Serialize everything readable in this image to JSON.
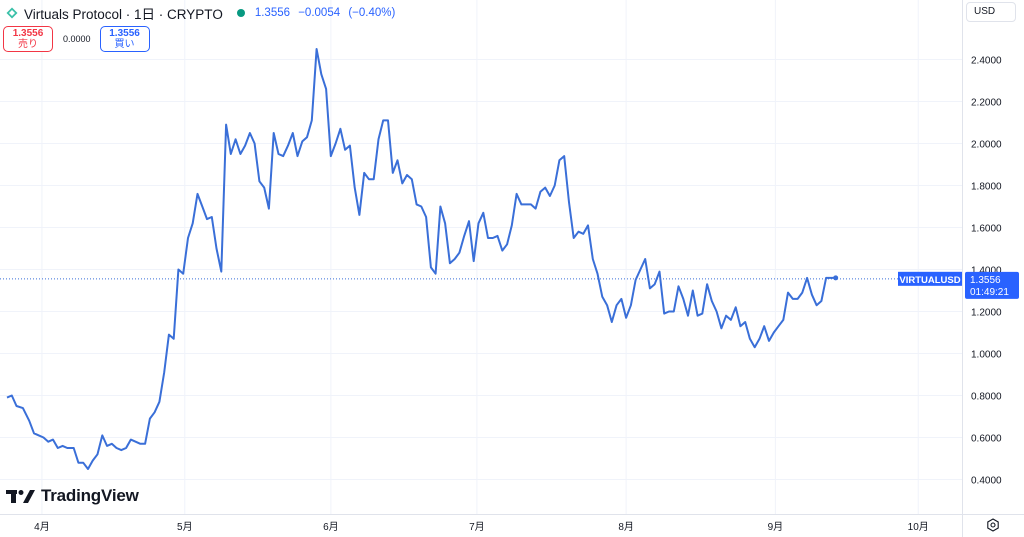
{
  "header": {
    "symbol": "Virtuals Protocol · 1日 · CRYPTO",
    "last": "1.3556",
    "change": "−0.0054",
    "change_pct": "(−0.40%)"
  },
  "trade": {
    "sell_price": "1.3556",
    "sell_label": "売り",
    "spread": "0.0000",
    "buy_price": "1.3556",
    "buy_label": "買い"
  },
  "currency": "USD",
  "watermark": "TradingView",
  "colors": {
    "line": "#3a6fd8",
    "sell": "#f23645",
    "buy": "#2962ff",
    "live": "#089981"
  },
  "icons": [
    "virtuals-logo-icon",
    "live-status-icon",
    "tradingview-logo-icon",
    "settings-icon"
  ],
  "chart_data": {
    "type": "line",
    "series": [
      {
        "name": "VIRTUALUSD",
        "values": [
          [
            0.0,
            0.79
          ],
          [
            1.5,
            0.8
          ],
          [
            3,
            0.75
          ],
          [
            5,
            0.74
          ],
          [
            7,
            0.68
          ],
          [
            8.5,
            0.62
          ],
          [
            10,
            0.61
          ],
          [
            11.5,
            0.6
          ],
          [
            13,
            0.58
          ],
          [
            14.5,
            0.59
          ],
          [
            16,
            0.55
          ],
          [
            17.5,
            0.56
          ],
          [
            19,
            0.55
          ],
          [
            21,
            0.55
          ],
          [
            22.5,
            0.48
          ],
          [
            24,
            0.48
          ],
          [
            25.5,
            0.45
          ],
          [
            27,
            0.49
          ],
          [
            28.5,
            0.52
          ],
          [
            30,
            0.61
          ],
          [
            31.5,
            0.56
          ],
          [
            33,
            0.57
          ],
          [
            34.5,
            0.55
          ],
          [
            36,
            0.54
          ],
          [
            37.5,
            0.55
          ],
          [
            39,
            0.59
          ],
          [
            40.5,
            0.58
          ],
          [
            42,
            0.57
          ],
          [
            43.5,
            0.57
          ],
          [
            45,
            0.69
          ],
          [
            46.5,
            0.72
          ],
          [
            48,
            0.77
          ],
          [
            49.5,
            0.91
          ],
          [
            51,
            1.09
          ],
          [
            52.5,
            1.07
          ],
          [
            54,
            1.4
          ],
          [
            55.5,
            1.38
          ],
          [
            57,
            1.55
          ],
          [
            58.5,
            1.62
          ],
          [
            60,
            1.76
          ],
          [
            61.5,
            1.7
          ],
          [
            63,
            1.64
          ],
          [
            64.5,
            1.65
          ],
          [
            66,
            1.5
          ],
          [
            67.5,
            1.39
          ],
          [
            69,
            2.09
          ],
          [
            70.5,
            1.95
          ],
          [
            72,
            2.02
          ],
          [
            73.5,
            1.95
          ],
          [
            75,
            1.99
          ],
          [
            76.5,
            2.05
          ],
          [
            78,
            2.0
          ],
          [
            79.5,
            1.82
          ],
          [
            81,
            1.79
          ],
          [
            82.5,
            1.69
          ],
          [
            84,
            2.05
          ],
          [
            85.5,
            1.95
          ],
          [
            87,
            1.94
          ],
          [
            88.5,
            1.99
          ],
          [
            90,
            2.05
          ],
          [
            91.5,
            1.94
          ],
          [
            93,
            2.01
          ],
          [
            94.5,
            2.03
          ],
          [
            96,
            2.11
          ],
          [
            97.5,
            2.45
          ],
          [
            99,
            2.33
          ],
          [
            100.5,
            2.26
          ],
          [
            102,
            1.94
          ],
          [
            103.5,
            2.0
          ],
          [
            105,
            2.07
          ],
          [
            106.5,
            1.97
          ],
          [
            108,
            1.99
          ],
          [
            109.5,
            1.79
          ],
          [
            111,
            1.66
          ],
          [
            112.5,
            1.86
          ],
          [
            114,
            1.83
          ],
          [
            115.5,
            1.83
          ],
          [
            117,
            2.02
          ],
          [
            118.5,
            2.11
          ],
          [
            120,
            2.11
          ],
          [
            121.5,
            1.86
          ],
          [
            123,
            1.92
          ],
          [
            124.5,
            1.81
          ],
          [
            126,
            1.85
          ],
          [
            127.5,
            1.83
          ],
          [
            129,
            1.71
          ],
          [
            130.5,
            1.7
          ],
          [
            132,
            1.65
          ],
          [
            133.5,
            1.41
          ],
          [
            135,
            1.38
          ],
          [
            136.5,
            1.7
          ],
          [
            138,
            1.62
          ],
          [
            139.5,
            1.43
          ],
          [
            141,
            1.45
          ],
          [
            142.5,
            1.48
          ],
          [
            144,
            1.56
          ],
          [
            145.5,
            1.63
          ],
          [
            147,
            1.44
          ],
          [
            148.5,
            1.62
          ],
          [
            150,
            1.67
          ],
          [
            151.5,
            1.55
          ],
          [
            153,
            1.55
          ],
          [
            154.5,
            1.56
          ],
          [
            156,
            1.49
          ],
          [
            157.5,
            1.52
          ],
          [
            159,
            1.61
          ],
          [
            160.5,
            1.76
          ],
          [
            162,
            1.71
          ],
          [
            163.5,
            1.71
          ],
          [
            165,
            1.71
          ],
          [
            166.5,
            1.69
          ],
          [
            168,
            1.77
          ],
          [
            169.5,
            1.79
          ],
          [
            171,
            1.75
          ],
          [
            172.5,
            1.8
          ],
          [
            174,
            1.92
          ],
          [
            175.5,
            1.94
          ],
          [
            177,
            1.72
          ],
          [
            178.5,
            1.55
          ],
          [
            180,
            1.58
          ],
          [
            181.5,
            1.57
          ],
          [
            183,
            1.61
          ],
          [
            184.5,
            1.45
          ],
          [
            186,
            1.38
          ],
          [
            187.5,
            1.27
          ],
          [
            189,
            1.23
          ],
          [
            190.5,
            1.15
          ],
          [
            192,
            1.23
          ],
          [
            193.5,
            1.26
          ],
          [
            195,
            1.17
          ],
          [
            196.5,
            1.23
          ],
          [
            198,
            1.35
          ],
          [
            199.5,
            1.4
          ],
          [
            201,
            1.45
          ],
          [
            202.5,
            1.31
          ],
          [
            204,
            1.33
          ],
          [
            205.5,
            1.39
          ],
          [
            207,
            1.19
          ],
          [
            208.5,
            1.2
          ],
          [
            210,
            1.2
          ],
          [
            211.5,
            1.32
          ],
          [
            213,
            1.26
          ],
          [
            214.5,
            1.18
          ],
          [
            216,
            1.3
          ],
          [
            217.5,
            1.18
          ],
          [
            219,
            1.19
          ],
          [
            220.5,
            1.33
          ],
          [
            222,
            1.25
          ],
          [
            223.5,
            1.2
          ],
          [
            225,
            1.12
          ],
          [
            226.5,
            1.18
          ],
          [
            228,
            1.16
          ],
          [
            229.5,
            1.22
          ],
          [
            231,
            1.13
          ],
          [
            232.5,
            1.15
          ],
          [
            234,
            1.07
          ],
          [
            235.5,
            1.03
          ],
          [
            237,
            1.07
          ],
          [
            238.5,
            1.13
          ],
          [
            240,
            1.06
          ],
          [
            241.5,
            1.1
          ],
          [
            243,
            1.13
          ],
          [
            244.5,
            1.16
          ],
          [
            246,
            1.29
          ],
          [
            247.5,
            1.26
          ],
          [
            249,
            1.26
          ],
          [
            250.5,
            1.29
          ],
          [
            252,
            1.36
          ],
          [
            253.5,
            1.28
          ],
          [
            255,
            1.23
          ],
          [
            256.5,
            1.25
          ],
          [
            258,
            1.36
          ],
          [
            259.5,
            1.36
          ],
          [
            261,
            1.36
          ]
        ]
      }
    ],
    "x_ticks": [
      {
        "label": "4月",
        "x": 11
      },
      {
        "label": "5月",
        "x": 56
      },
      {
        "label": "6月",
        "x": 102
      },
      {
        "label": "7月",
        "x": 148
      },
      {
        "label": "8月",
        "x": 195
      },
      {
        "label": "9月",
        "x": 242
      },
      {
        "label": "10月",
        "x": 287
      }
    ],
    "y_ticks": [
      0.4,
      0.6,
      0.8,
      1.0,
      1.2,
      1.4,
      1.6,
      1.8,
      2.0,
      2.2,
      2.4
    ],
    "ylim": [
      0.3,
      2.6
    ],
    "xlim": [
      0,
      300
    ],
    "last_price": 1.3556,
    "last_label": "VIRTUALUSD",
    "last_price_text": "1.3556",
    "countdown": "01:49:21",
    "grid": true
  }
}
